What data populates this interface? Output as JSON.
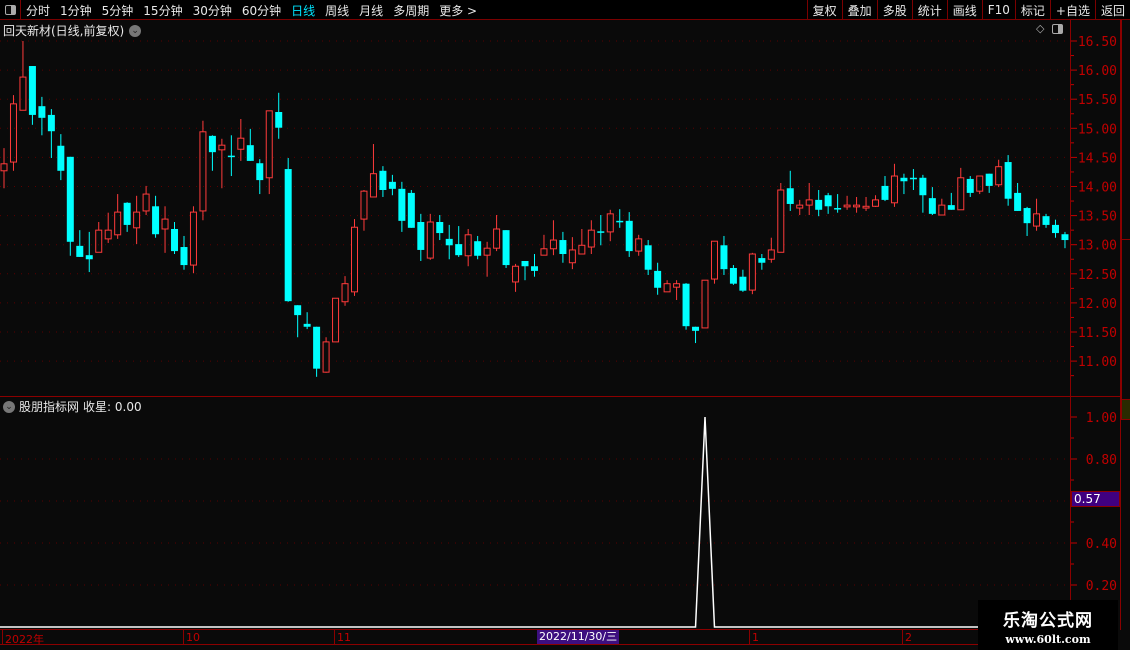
{
  "toolbar": {
    "periods": [
      "分时",
      "1分钟",
      "5分钟",
      "15分钟",
      "30分钟",
      "60分钟",
      "日线",
      "周线",
      "月线",
      "多周期",
      "更多 >"
    ],
    "active_period": "日线",
    "buttons": [
      "复权",
      "叠加",
      "多股",
      "统计",
      "画线",
      "F10",
      "标记",
      "+自选",
      "返回"
    ]
  },
  "main": {
    "title": "回天新材(日线,前复权)",
    "icons": [
      "diamond-icon",
      "panel-toggle-icon"
    ]
  },
  "indicator": {
    "title": "股朋指标网",
    "value_label": "收星: 0.00",
    "cursor_value": "0.57"
  },
  "time_axis": {
    "labels": [
      "2022年",
      "10",
      "11",
      "1",
      "2"
    ],
    "cursor_date": "2022/11/30/三"
  },
  "watermark": {
    "line1": "乐淘公式网",
    "line2": "www.60lt.com"
  },
  "colors": {
    "up": "#ff3b3b",
    "down": "#00ffff",
    "axis": "#c00000",
    "background": "#0a0a0a",
    "cursor_bg": "#400080"
  },
  "chart_data": [
    {
      "type": "candlestick",
      "ylim": [
        10.42,
        16.83
      ],
      "yticks": [
        "16.50",
        "16.00",
        "15.50",
        "15.00",
        "14.50",
        "14.00",
        "13.50",
        "13.00",
        "12.50",
        "12.00",
        "11.50",
        "11.00"
      ],
      "grid": true,
      "ohlc": [
        [
          14.27,
          14.66,
          13.97,
          14.39
        ],
        [
          14.42,
          15.57,
          14.27,
          15.42
        ],
        [
          15.31,
          16.5,
          15.31,
          15.88
        ],
        [
          16.07,
          16.07,
          15.06,
          15.23
        ],
        [
          15.38,
          15.54,
          14.88,
          15.18
        ],
        [
          15.23,
          15.33,
          14.49,
          14.95
        ],
        [
          14.7,
          14.9,
          14.11,
          14.27
        ],
        [
          14.51,
          14.51,
          12.81,
          13.05
        ],
        [
          12.98,
          13.25,
          12.79,
          12.79
        ],
        [
          12.82,
          13.22,
          12.53,
          12.75
        ],
        [
          12.87,
          13.39,
          12.87,
          13.25
        ],
        [
          13.1,
          13.55,
          13.03,
          13.25
        ],
        [
          13.17,
          13.87,
          13.1,
          13.56
        ],
        [
          13.72,
          13.73,
          13.22,
          13.34
        ],
        [
          13.29,
          13.84,
          13.01,
          13.56
        ],
        [
          13.58,
          14.01,
          13.51,
          13.87
        ],
        [
          13.66,
          13.84,
          13.12,
          13.18
        ],
        [
          13.27,
          13.66,
          12.86,
          13.44
        ],
        [
          13.27,
          13.39,
          12.84,
          12.89
        ],
        [
          12.96,
          13.15,
          12.57,
          12.65
        ],
        [
          12.65,
          13.66,
          12.51,
          13.56
        ],
        [
          13.58,
          15.13,
          13.42,
          14.94
        ],
        [
          14.87,
          14.88,
          14.27,
          14.59
        ],
        [
          14.63,
          14.82,
          13.97,
          14.71
        ],
        [
          14.53,
          14.88,
          14.18,
          14.51
        ],
        [
          14.64,
          15.16,
          14.44,
          14.83
        ],
        [
          14.71,
          14.99,
          14.44,
          14.44
        ],
        [
          14.4,
          14.47,
          13.87,
          14.11
        ],
        [
          14.15,
          15.3,
          13.87,
          15.3
        ],
        [
          15.28,
          15.61,
          14.82,
          15.01
        ],
        [
          14.3,
          14.49,
          12.02,
          12.03
        ],
        [
          11.96,
          11.96,
          11.41,
          11.79
        ],
        [
          11.64,
          11.84,
          11.55,
          11.59
        ],
        [
          11.59,
          11.59,
          10.73,
          10.87
        ],
        [
          10.81,
          11.41,
          10.8,
          11.33
        ],
        [
          11.33,
          12.08,
          11.33,
          12.08
        ],
        [
          12.02,
          12.46,
          11.95,
          12.33
        ],
        [
          12.19,
          13.44,
          12.12,
          13.3
        ],
        [
          13.44,
          13.94,
          13.24,
          13.92
        ],
        [
          13.82,
          14.73,
          13.82,
          14.22
        ],
        [
          14.27,
          14.35,
          13.82,
          13.94
        ],
        [
          14.08,
          14.2,
          13.85,
          13.96
        ],
        [
          13.96,
          14.08,
          13.22,
          13.41
        ],
        [
          13.89,
          13.94,
          13.29,
          13.29
        ],
        [
          13.39,
          13.53,
          12.72,
          12.91
        ],
        [
          12.77,
          13.53,
          12.74,
          13.39
        ],
        [
          13.39,
          13.51,
          13.08,
          13.2
        ],
        [
          13.1,
          13.34,
          12.75,
          12.99
        ],
        [
          13.01,
          13.32,
          12.79,
          12.82
        ],
        [
          12.81,
          13.27,
          12.63,
          13.17
        ],
        [
          13.06,
          13.15,
          12.75,
          12.81
        ],
        [
          12.82,
          13.05,
          12.45,
          12.94
        ],
        [
          12.94,
          13.51,
          12.89,
          13.27
        ],
        [
          13.25,
          13.25,
          12.6,
          12.65
        ],
        [
          12.36,
          12.67,
          12.19,
          12.63
        ],
        [
          12.72,
          12.72,
          12.39,
          12.63
        ],
        [
          12.63,
          12.84,
          12.45,
          12.55
        ],
        [
          12.82,
          13.17,
          12.82,
          12.93
        ],
        [
          12.93,
          13.42,
          12.82,
          13.08
        ],
        [
          13.08,
          13.22,
          12.69,
          12.84
        ],
        [
          12.69,
          13.13,
          12.58,
          12.91
        ],
        [
          12.84,
          13.27,
          12.84,
          12.99
        ],
        [
          12.96,
          13.42,
          12.84,
          13.25
        ],
        [
          13.23,
          13.51,
          12.99,
          13.22
        ],
        [
          13.22,
          13.6,
          13.06,
          13.53
        ],
        [
          13.41,
          13.61,
          13.29,
          13.4
        ],
        [
          13.41,
          13.56,
          12.79,
          12.89
        ],
        [
          12.89,
          13.17,
          12.81,
          13.1
        ],
        [
          12.99,
          13.08,
          12.48,
          12.57
        ],
        [
          12.55,
          12.69,
          12.14,
          12.26
        ],
        [
          12.19,
          12.39,
          12.19,
          12.33
        ],
        [
          12.27,
          12.39,
          12.05,
          12.33
        ],
        [
          12.33,
          12.34,
          11.54,
          11.6
        ],
        [
          11.59,
          11.59,
          11.31,
          11.52
        ],
        [
          11.57,
          12.39,
          11.57,
          12.39
        ],
        [
          12.41,
          13.06,
          12.33,
          13.06
        ],
        [
          12.99,
          13.15,
          12.48,
          12.58
        ],
        [
          12.6,
          12.65,
          12.31,
          12.33
        ],
        [
          12.45,
          12.57,
          12.19,
          12.21
        ],
        [
          12.22,
          12.86,
          12.15,
          12.84
        ],
        [
          12.77,
          12.84,
          12.57,
          12.69
        ],
        [
          12.75,
          13.12,
          12.69,
          12.91
        ],
        [
          12.87,
          14.06,
          12.87,
          13.94
        ],
        [
          13.97,
          14.27,
          13.58,
          13.7
        ],
        [
          13.63,
          13.77,
          13.51,
          13.68
        ],
        [
          13.68,
          14.06,
          13.51,
          13.77
        ],
        [
          13.77,
          13.94,
          13.49,
          13.6
        ],
        [
          13.85,
          13.89,
          13.53,
          13.66
        ],
        [
          13.63,
          13.87,
          13.55,
          13.62
        ],
        [
          13.65,
          13.84,
          13.6,
          13.68
        ],
        [
          13.65,
          13.82,
          13.55,
          13.68
        ],
        [
          13.63,
          13.82,
          13.58,
          13.66
        ],
        [
          13.66,
          13.85,
          13.65,
          13.77
        ],
        [
          14.01,
          14.18,
          13.75,
          13.77
        ],
        [
          13.72,
          14.39,
          13.65,
          14.18
        ],
        [
          14.15,
          14.22,
          13.87,
          14.09
        ],
        [
          14.15,
          14.3,
          13.94,
          14.14
        ],
        [
          14.15,
          14.2,
          13.55,
          13.85
        ],
        [
          13.8,
          13.99,
          13.51,
          13.53
        ],
        [
          13.51,
          13.79,
          13.51,
          13.68
        ],
        [
          13.68,
          13.89,
          13.6,
          13.6
        ],
        [
          13.6,
          14.32,
          13.6,
          14.15
        ],
        [
          14.13,
          14.18,
          13.82,
          13.89
        ],
        [
          13.92,
          14.18,
          13.87,
          14.18
        ],
        [
          14.22,
          14.22,
          13.89,
          14.01
        ],
        [
          14.03,
          14.46,
          13.99,
          14.34
        ],
        [
          14.42,
          14.54,
          13.67,
          13.79
        ],
        [
          13.89,
          14.06,
          13.58,
          13.58
        ],
        [
          13.63,
          13.65,
          13.15,
          13.37
        ],
        [
          13.32,
          13.79,
          13.24,
          13.53
        ],
        [
          13.49,
          13.53,
          13.29,
          13.34
        ],
        [
          13.34,
          13.43,
          13.12,
          13.2
        ],
        [
          13.18,
          13.22,
          12.94,
          13.08
        ]
      ]
    },
    {
      "type": "line",
      "series_label": "收星",
      "ylim": [
        0,
        1.05
      ],
      "yticks": [
        "1.00",
        "0.80",
        "0.40",
        "0.20"
      ],
      "grid": true,
      "spike_index": 74,
      "spike_value": 1.0,
      "baseline_value": 0.0
    }
  ]
}
